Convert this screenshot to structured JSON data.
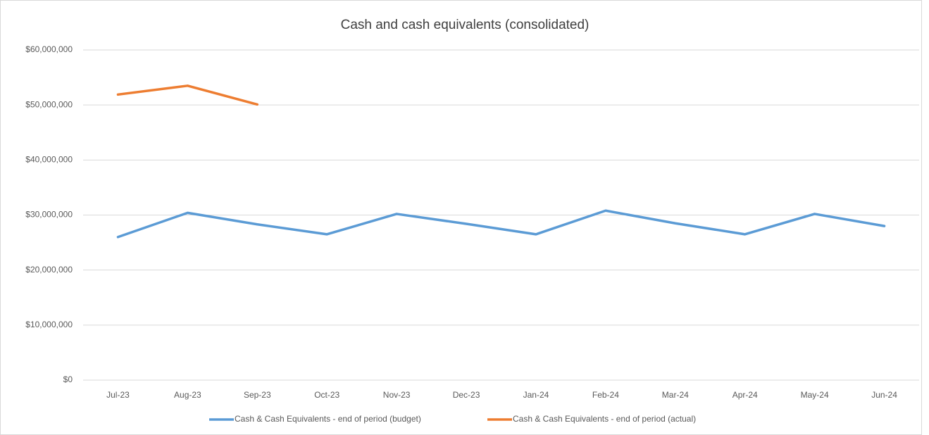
{
  "chart_data": {
    "type": "line",
    "title": "Cash and cash equivalents (consolidated)",
    "categories": [
      "Jul-23",
      "Aug-23",
      "Sep-23",
      "Oct-23",
      "Nov-23",
      "Dec-23",
      "Jan-24",
      "Feb-24",
      "Mar-24",
      "Apr-24",
      "May-24",
      "Jun-24"
    ],
    "series": [
      {
        "name": "Cash & Cash Equivalents - end of period (budget)",
        "color": "#5b9bd5",
        "values": [
          26000000,
          30400000,
          28300000,
          26500000,
          30200000,
          28400000,
          26500000,
          30800000,
          28500000,
          26500000,
          30200000,
          28000000
        ]
      },
      {
        "name": "Cash & Cash Equivalents - end of period (actual)",
        "color": "#ed7d31",
        "values": [
          51900000,
          53500000,
          50100000,
          null,
          null,
          null,
          null,
          null,
          null,
          null,
          null,
          null
        ]
      }
    ],
    "ylim": [
      0,
      60000000
    ],
    "yticks": [
      {
        "value": 0,
        "label": "$0"
      },
      {
        "value": 10000000,
        "label": "$10,000,000"
      },
      {
        "value": 20000000,
        "label": "$20,000,000"
      },
      {
        "value": 30000000,
        "label": "$30,000,000"
      },
      {
        "value": 40000000,
        "label": "$40,000,000"
      },
      {
        "value": 50000000,
        "label": "$50,000,000"
      },
      {
        "value": 60000000,
        "label": "$60,000,000"
      }
    ],
    "grid": true,
    "legend": "bottom"
  }
}
